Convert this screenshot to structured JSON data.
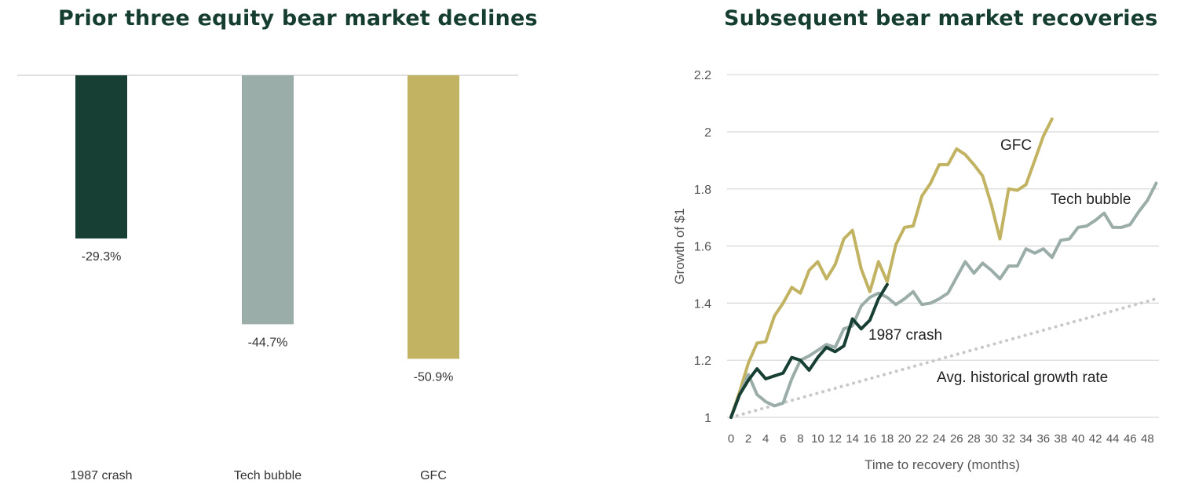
{
  "colors": {
    "title": "#153d30",
    "crash_1987": "#173f34",
    "tech_bubble": "#9bada8",
    "gfc": "#c2b362",
    "avg": "#c8c8c8",
    "grid": "#d6d6d6",
    "text": "#333333",
    "axis_text": "#555555"
  },
  "chart_data": [
    {
      "type": "bar",
      "title": "Prior three equity bear market declines",
      "categories": [
        "1987 crash",
        "Tech bubble",
        "GFC"
      ],
      "values": [
        -29.3,
        -44.7,
        -50.9
      ],
      "value_labels": [
        "-29.3%",
        "-44.7%",
        "-50.9%"
      ],
      "ylim": [
        -58,
        0
      ],
      "grid": false,
      "legend": "none"
    },
    {
      "type": "line",
      "title": "Subsequent bear market recoveries",
      "xlabel": "Time to recovery (months)",
      "ylabel": "Growth of $1",
      "xlim": [
        0,
        49
      ],
      "ylim": [
        1,
        2.2
      ],
      "xticks": [
        0,
        2,
        4,
        6,
        8,
        10,
        12,
        14,
        16,
        18,
        20,
        22,
        24,
        26,
        28,
        30,
        32,
        34,
        36,
        38,
        40,
        42,
        44,
        46,
        48
      ],
      "xtick_labels": [
        "0",
        "2",
        "4",
        "6",
        "8",
        "10",
        "12",
        "14",
        "16",
        "18",
        "20",
        "22",
        "24",
        "26",
        "28",
        "30",
        "32",
        "34",
        "36",
        "38",
        "40",
        "42",
        "44",
        "46",
        "48"
      ],
      "yticks": [
        1,
        1.2,
        1.4,
        1.6,
        1.8,
        2,
        2.2
      ],
      "ytick_labels": [
        "1",
        "1.2",
        "1.4",
        "1.6",
        "1.8",
        "2",
        "2.2"
      ],
      "grid": true,
      "legend": "direct labels",
      "series": [
        {
          "name": "GFC",
          "x": [
            0,
            1,
            2,
            3,
            4,
            5,
            6,
            7,
            8,
            9,
            10,
            11,
            12,
            13,
            14,
            15,
            16,
            17,
            18,
            19,
            20,
            21,
            22,
            23,
            24,
            25,
            26,
            27,
            28,
            29,
            30,
            31,
            32,
            33,
            34,
            35,
            36,
            37
          ],
          "y": [
            1.0,
            1.09,
            1.19,
            1.26,
            1.265,
            1.355,
            1.4,
            1.455,
            1.435,
            1.515,
            1.545,
            1.485,
            1.535,
            1.625,
            1.655,
            1.52,
            1.44,
            1.545,
            1.475,
            1.605,
            1.665,
            1.67,
            1.775,
            1.82,
            1.885,
            1.885,
            1.94,
            1.92,
            1.885,
            1.845,
            1.745,
            1.625,
            1.8,
            1.795,
            1.815,
            1.9,
            1.985,
            2.045
          ]
        },
        {
          "name": "Tech bubble",
          "x": [
            0,
            1,
            2,
            3,
            4,
            5,
            6,
            7,
            8,
            9,
            10,
            11,
            12,
            13,
            14,
            15,
            16,
            17,
            18,
            19,
            20,
            21,
            22,
            23,
            24,
            25,
            26,
            27,
            28,
            29,
            30,
            31,
            32,
            33,
            34,
            35,
            36,
            37,
            38,
            39,
            40,
            41,
            42,
            43,
            44,
            45,
            46,
            47,
            48,
            49
          ],
          "y": [
            1.0,
            1.08,
            1.15,
            1.08,
            1.055,
            1.04,
            1.05,
            1.135,
            1.2,
            1.215,
            1.235,
            1.255,
            1.245,
            1.31,
            1.32,
            1.39,
            1.42,
            1.435,
            1.42,
            1.395,
            1.415,
            1.44,
            1.395,
            1.4,
            1.415,
            1.435,
            1.49,
            1.545,
            1.505,
            1.54,
            1.515,
            1.485,
            1.53,
            1.53,
            1.59,
            1.575,
            1.59,
            1.56,
            1.62,
            1.625,
            1.665,
            1.67,
            1.69,
            1.715,
            1.665,
            1.665,
            1.675,
            1.72,
            1.76,
            1.82
          ]
        },
        {
          "name": "1987 crash",
          "x": [
            0,
            1,
            2,
            3,
            4,
            5,
            6,
            7,
            8,
            9,
            10,
            11,
            12,
            13,
            14,
            15,
            16,
            17,
            18
          ],
          "y": [
            1.0,
            1.08,
            1.13,
            1.17,
            1.135,
            1.145,
            1.155,
            1.21,
            1.2,
            1.165,
            1.21,
            1.245,
            1.23,
            1.25,
            1.345,
            1.31,
            1.34,
            1.415,
            1.465
          ]
        },
        {
          "name": "Avg. historical growth rate",
          "x": [
            0,
            49
          ],
          "y": [
            1.0,
            1.415
          ],
          "style": "dotted"
        }
      ]
    }
  ]
}
